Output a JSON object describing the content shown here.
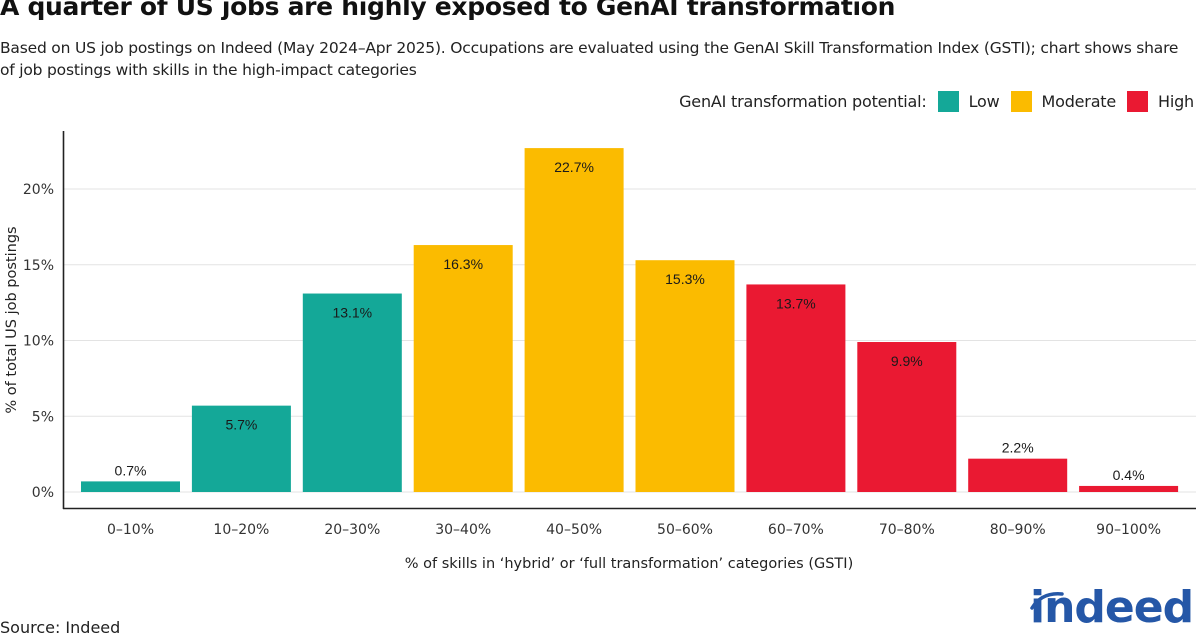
{
  "header": {
    "title": "A quarter of US jobs are highly exposed to GenAI transformation",
    "subtitle": "Based on US job postings on Indeed (May 2024–Apr 2025). Occupations are evaluated using the GenAI Skill Transformation Index (GSTI); chart shows share of job postings with skills in the high-impact categories"
  },
  "legend": {
    "title": "GenAI transformation potential:",
    "items": [
      {
        "label": "Low",
        "color": "#14a898"
      },
      {
        "label": "Moderate",
        "color": "#fbbb00"
      },
      {
        "label": "High",
        "color": "#ea1932"
      }
    ]
  },
  "footer": {
    "source": "Source: Indeed",
    "logo_text": "indeed",
    "logo_color": "#2557a7"
  },
  "chart_data": {
    "type": "bar",
    "title": "A quarter of US jobs are highly exposed to GenAI transformation",
    "xlabel": "% of skills in ‘hybrid’ or ‘full transformation’ categories (GSTI)",
    "ylabel": "% of total US job postings",
    "ylim": [
      0,
      23.5
    ],
    "yticks": [
      0,
      5,
      10,
      15,
      20
    ],
    "ytick_labels": [
      "0%",
      "5%",
      "10%",
      "15%",
      "20%"
    ],
    "grid": true,
    "legend_position": "top-right",
    "categories": [
      "0–10%",
      "10–20%",
      "20–30%",
      "30–40%",
      "40–50%",
      "50–60%",
      "60–70%",
      "70–80%",
      "80–90%",
      "90–100%"
    ],
    "values": [
      0.7,
      5.7,
      13.1,
      16.3,
      22.7,
      15.3,
      13.7,
      9.9,
      2.2,
      0.4
    ],
    "value_labels": [
      "0.7%",
      "5.7%",
      "13.1%",
      "16.3%",
      "22.7%",
      "15.3%",
      "13.7%",
      "9.9%",
      "2.2%",
      "0.4%"
    ],
    "groups": [
      "Low",
      "Low",
      "Low",
      "Moderate",
      "Moderate",
      "Moderate",
      "High",
      "High",
      "High",
      "High"
    ]
  }
}
